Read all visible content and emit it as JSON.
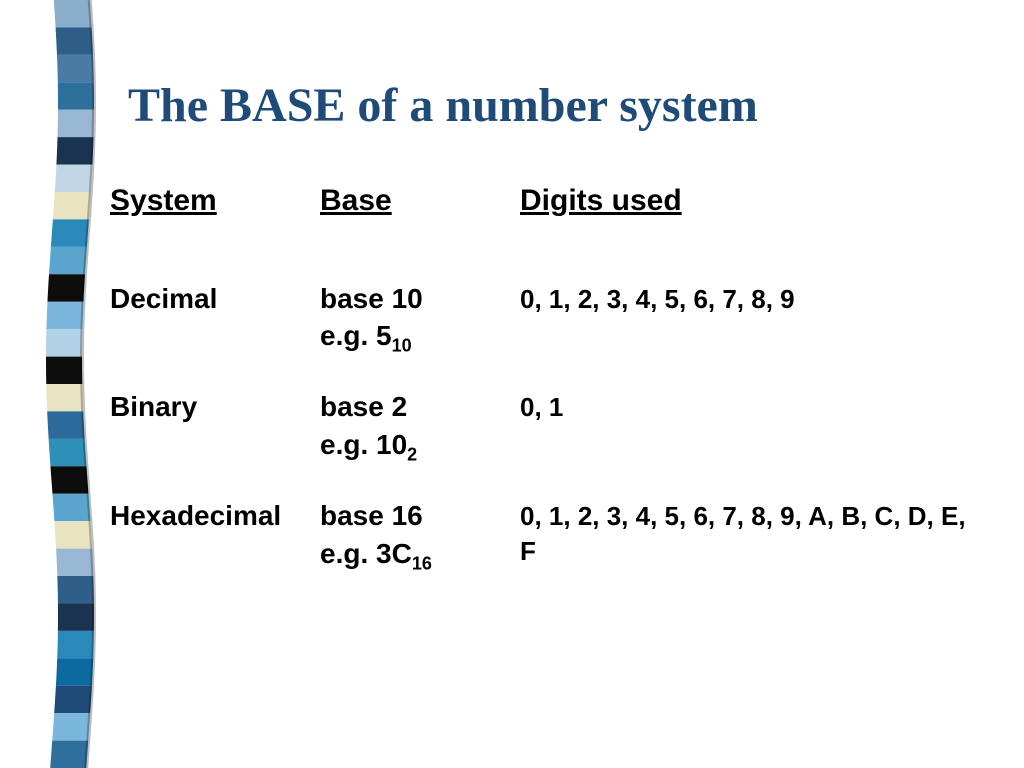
{
  "title": "The BASE of a number system",
  "headers": {
    "system": "System",
    "base": "Base",
    "digits": "Digits used"
  },
  "rows": [
    {
      "system": "Decimal",
      "base_line1": "base 10",
      "eg_prefix": "e.g. 5",
      "eg_sub": "10",
      "digits": "0, 1, 2, 3, 4, 5, 6, 7, 8, 9"
    },
    {
      "system": "Binary",
      "base_line1": "base 2",
      "eg_prefix": "e.g. 10",
      "eg_sub": "2",
      "digits": "0, 1"
    },
    {
      "system": "Hexadecimal",
      "base_line1": "base 16",
      "eg_prefix": "e.g. 3C",
      "eg_sub": "16",
      "digits": "0, 1, 2, 3, 4, 5, 6, 7, 8, 9, A, B, C, D, E, F"
    }
  ],
  "ribbon": {
    "amplitude": 6,
    "width": 36,
    "colors": [
      "#8aaecb",
      "#2f5e88",
      "#4a7ba5",
      "#2e6f9c",
      "#98b7d2",
      "#1a3350",
      "#c3d6e6",
      "#e8e3c0",
      "#2a89b8",
      "#5aa5cd",
      "#0d0d0d",
      "#7bb6dd",
      "#b2d1e7",
      "#0d0d0d",
      "#e8e3c0",
      "#2c6a9b",
      "#2e8fb9",
      "#0d0d0d",
      "#5aa5cd",
      "#e8e3c0",
      "#98b7d2",
      "#2f5e88",
      "#1a3350",
      "#2a89b8",
      "#0d6aa0",
      "#1f4b79",
      "#7bb6dd",
      "#2e6f9c"
    ]
  },
  "colors": {
    "title": "#1f4b79",
    "text": "#000000",
    "background": "#ffffff"
  },
  "fonts": {
    "title_family": "Times New Roman",
    "title_size_pt": 36,
    "body_family": "Comic Sans MS",
    "body_size_pt": 21
  }
}
